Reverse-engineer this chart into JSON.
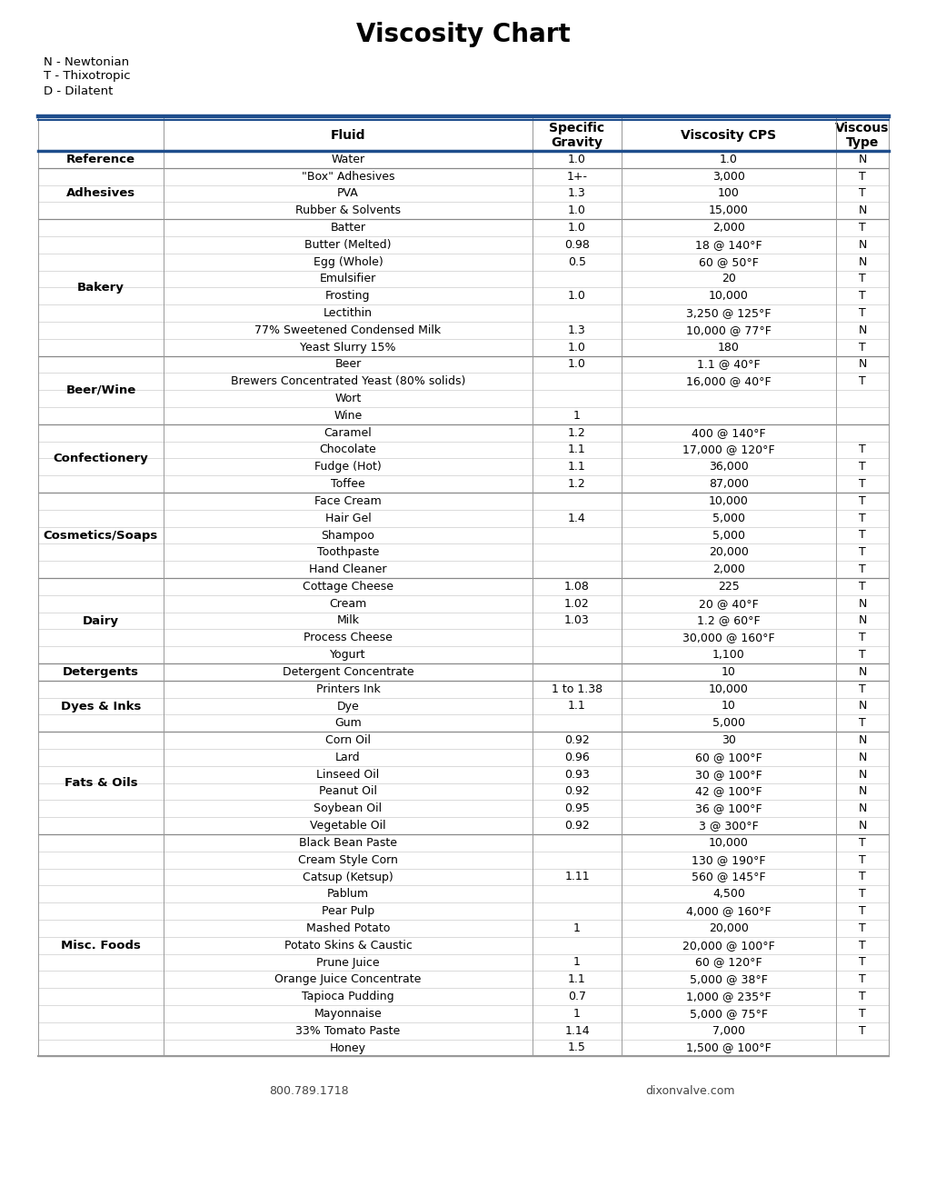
{
  "title": "Viscosity Chart",
  "legend_lines": [
    "N - Newtonian",
    "T - Thixotropic",
    "D - Dilatent"
  ],
  "footer_left": "800.789.1718",
  "footer_right": "dixonvalve.com",
  "rows": [
    [
      "Reference",
      "Water",
      "1.0",
      "1.0",
      "N"
    ],
    [
      "Adhesives",
      "\"Box\" Adhesives",
      "1+-",
      "3,000",
      "T"
    ],
    [
      "Adhesives",
      "PVA",
      "1.3",
      "100",
      "T"
    ],
    [
      "Adhesives",
      "Rubber & Solvents",
      "1.0",
      "15,000",
      "N"
    ],
    [
      "Bakery",
      "Batter",
      "1.0",
      "2,000",
      "T"
    ],
    [
      "Bakery",
      "Butter (Melted)",
      "0.98",
      "18 @ 140°F",
      "N"
    ],
    [
      "Bakery",
      "Egg (Whole)",
      "0.5",
      "60 @ 50°F",
      "N"
    ],
    [
      "Bakery",
      "Emulsifier",
      "",
      "20",
      "T"
    ],
    [
      "Bakery",
      "Frosting",
      "1.0",
      "10,000",
      "T"
    ],
    [
      "Bakery",
      "Lectithin",
      "",
      "3,250 @ 125°F",
      "T"
    ],
    [
      "Bakery",
      "77% Sweetened Condensed Milk",
      "1.3",
      "10,000 @ 77°F",
      "N"
    ],
    [
      "Bakery",
      "Yeast Slurry 15%",
      "1.0",
      "180",
      "T"
    ],
    [
      "Beer/Wine",
      "Beer",
      "1.0",
      "1.1 @ 40°F",
      "N"
    ],
    [
      "Beer/Wine",
      "Brewers Concentrated Yeast (80% solids)",
      "",
      "16,000 @ 40°F",
      "T"
    ],
    [
      "Beer/Wine",
      "Wort",
      "",
      "",
      ""
    ],
    [
      "Beer/Wine",
      "Wine",
      "1",
      "",
      ""
    ],
    [
      "Confectionery",
      "Caramel",
      "1.2",
      "400 @ 140°F",
      ""
    ],
    [
      "Confectionery",
      "Chocolate",
      "1.1",
      "17,000 @ 120°F",
      "T"
    ],
    [
      "Confectionery",
      "Fudge (Hot)",
      "1.1",
      "36,000",
      "T"
    ],
    [
      "Confectionery",
      "Toffee",
      "1.2",
      "87,000",
      "T"
    ],
    [
      "Cosmetics/Soaps",
      "Face Cream",
      "",
      "10,000",
      "T"
    ],
    [
      "Cosmetics/Soaps",
      "Hair Gel",
      "1.4",
      "5,000",
      "T"
    ],
    [
      "Cosmetics/Soaps",
      "Shampoo",
      "",
      "5,000",
      "T"
    ],
    [
      "Cosmetics/Soaps",
      "Toothpaste",
      "",
      "20,000",
      "T"
    ],
    [
      "Cosmetics/Soaps",
      "Hand Cleaner",
      "",
      "2,000",
      "T"
    ],
    [
      "Dairy",
      "Cottage Cheese",
      "1.08",
      "225",
      "T"
    ],
    [
      "Dairy",
      "Cream",
      "1.02",
      "20 @ 40°F",
      "N"
    ],
    [
      "Dairy",
      "Milk",
      "1.03",
      "1.2 @ 60°F",
      "N"
    ],
    [
      "Dairy",
      "Process Cheese",
      "",
      "30,000 @ 160°F",
      "T"
    ],
    [
      "Dairy",
      "Yogurt",
      "",
      "1,100",
      "T"
    ],
    [
      "Detergents",
      "Detergent Concentrate",
      "",
      "10",
      "N"
    ],
    [
      "Dyes & Inks",
      "Printers Ink",
      "1 to 1.38",
      "10,000",
      "T"
    ],
    [
      "Dyes & Inks",
      "Dye",
      "1.1",
      "10",
      "N"
    ],
    [
      "Dyes & Inks",
      "Gum",
      "",
      "5,000",
      "T"
    ],
    [
      "Fats & Oils",
      "Corn Oil",
      "0.92",
      "30",
      "N"
    ],
    [
      "Fats & Oils",
      "Lard",
      "0.96",
      "60 @ 100°F",
      "N"
    ],
    [
      "Fats & Oils",
      "Linseed Oil",
      "0.93",
      "30 @ 100°F",
      "N"
    ],
    [
      "Fats & Oils",
      "Peanut Oil",
      "0.92",
      "42 @ 100°F",
      "N"
    ],
    [
      "Fats & Oils",
      "Soybean Oil",
      "0.95",
      "36 @ 100°F",
      "N"
    ],
    [
      "Fats & Oils",
      "Vegetable Oil",
      "0.92",
      "3 @ 300°F",
      "N"
    ],
    [
      "Misc. Foods",
      "Black Bean Paste",
      "",
      "10,000",
      "T"
    ],
    [
      "Misc. Foods",
      "Cream Style Corn",
      "",
      "130 @ 190°F",
      "T"
    ],
    [
      "Misc. Foods",
      "Catsup (Ketsup)",
      "1.11",
      "560 @ 145°F",
      "T"
    ],
    [
      "Misc. Foods",
      "Pablum",
      "",
      "4,500",
      "T"
    ],
    [
      "Misc. Foods",
      "Pear Pulp",
      "",
      "4,000 @ 160°F",
      "T"
    ],
    [
      "Misc. Foods",
      "Mashed Potato",
      "1",
      "20,000",
      "T"
    ],
    [
      "Misc. Foods",
      "Potato Skins & Caustic",
      "",
      "20,000 @ 100°F",
      "T"
    ],
    [
      "Misc. Foods",
      "Prune Juice",
      "1",
      "60 @ 120°F",
      "T"
    ],
    [
      "Misc. Foods",
      "Orange Juice Concentrate",
      "1.1",
      "5,000 @ 38°F",
      "T"
    ],
    [
      "Misc. Foods",
      "Tapioca Pudding",
      "0.7",
      "1,000 @ 235°F",
      "T"
    ],
    [
      "Misc. Foods",
      "Mayonnaise",
      "1",
      "5,000 @ 75°F",
      "T"
    ],
    [
      "Misc. Foods",
      "33% Tomato Paste",
      "1.14",
      "7,000",
      "T"
    ],
    [
      "Misc. Foods",
      "Honey",
      "1.5",
      "1,500 @ 100°F",
      ""
    ]
  ],
  "blue_line_color": "#1e4d8c",
  "border_color": "#999999",
  "thin_border": "#cccccc",
  "cat_border": "#888888",
  "title_fontsize": 20,
  "legend_fontsize": 9.5,
  "header_fontsize": 10,
  "data_fontsize": 9,
  "cat_fontsize": 9.5,
  "footer_fontsize": 9
}
